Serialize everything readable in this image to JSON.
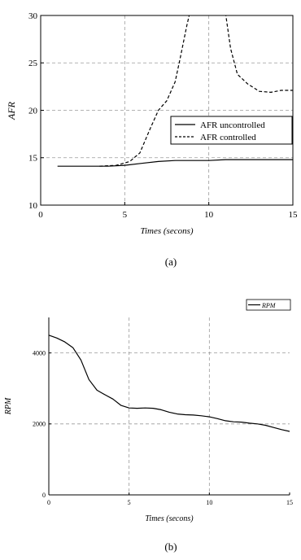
{
  "chart_data": [
    {
      "type": "line",
      "panel_label": "(a)",
      "xlabel": "Times (secons)",
      "ylabel": "AFR",
      "xlim": [
        0,
        15
      ],
      "ylim": [
        10,
        30
      ],
      "x_ticks": [
        0,
        5,
        10,
        15
      ],
      "y_ticks": [
        10,
        15,
        20,
        25,
        30
      ],
      "grid": true,
      "legend_position": "right-middle",
      "series": [
        {
          "name": "AFR uncontrolled",
          "style": "solid",
          "x": [
            1,
            3,
            4,
            5,
            6,
            7,
            8,
            9,
            10,
            11,
            12,
            13,
            14,
            15
          ],
          "y": [
            14.1,
            14.1,
            14.1,
            14.2,
            14.4,
            14.6,
            14.7,
            14.7,
            14.7,
            14.8,
            14.8,
            14.8,
            14.8,
            14.8
          ]
        },
        {
          "name": "AFR controlled",
          "style": "dashed",
          "x": [
            3.5,
            4.5,
            5.3,
            5.9,
            6.5,
            7.0,
            7.5,
            8.0,
            8.3,
            8.7,
            8.9,
            9.0,
            null,
            10.9,
            11.0,
            11.3,
            11.7,
            12.3,
            13.0,
            13.7,
            14.3,
            15.0
          ],
          "y": [
            14.1,
            14.2,
            14.6,
            15.5,
            18.0,
            20.0,
            21.0,
            23.0,
            25.5,
            29.0,
            30.5,
            30.8,
            null,
            30.8,
            30.2,
            26.5,
            23.8,
            22.8,
            22.0,
            21.9,
            22.1,
            22.1
          ]
        }
      ]
    },
    {
      "type": "line",
      "panel_label": "(b)",
      "xlabel": "Times (secons)",
      "ylabel": "RPM",
      "xlim": [
        0,
        15
      ],
      "ylim": [
        0,
        5000
      ],
      "x_ticks": [
        0,
        5,
        10,
        15
      ],
      "y_ticks": [
        0,
        2000,
        4000
      ],
      "grid": true,
      "legend_position": "top-right",
      "series": [
        {
          "name": "RPM",
          "style": "solid",
          "x": [
            0,
            0.5,
            1,
            1.5,
            2,
            2.5,
            3,
            3.5,
            4,
            4.5,
            5,
            5.5,
            6,
            6.5,
            7,
            7.5,
            8,
            8.5,
            9,
            9.5,
            10,
            10.5,
            11,
            11.5,
            12,
            12.5,
            13,
            13.5,
            14,
            14.5,
            15
          ],
          "y": [
            4500,
            4420,
            4310,
            4150,
            3800,
            3250,
            2950,
            2820,
            2700,
            2520,
            2450,
            2440,
            2450,
            2440,
            2400,
            2330,
            2280,
            2260,
            2250,
            2230,
            2200,
            2150,
            2090,
            2060,
            2050,
            2020,
            2000,
            1960,
            1900,
            1840,
            1790
          ]
        }
      ]
    }
  ]
}
